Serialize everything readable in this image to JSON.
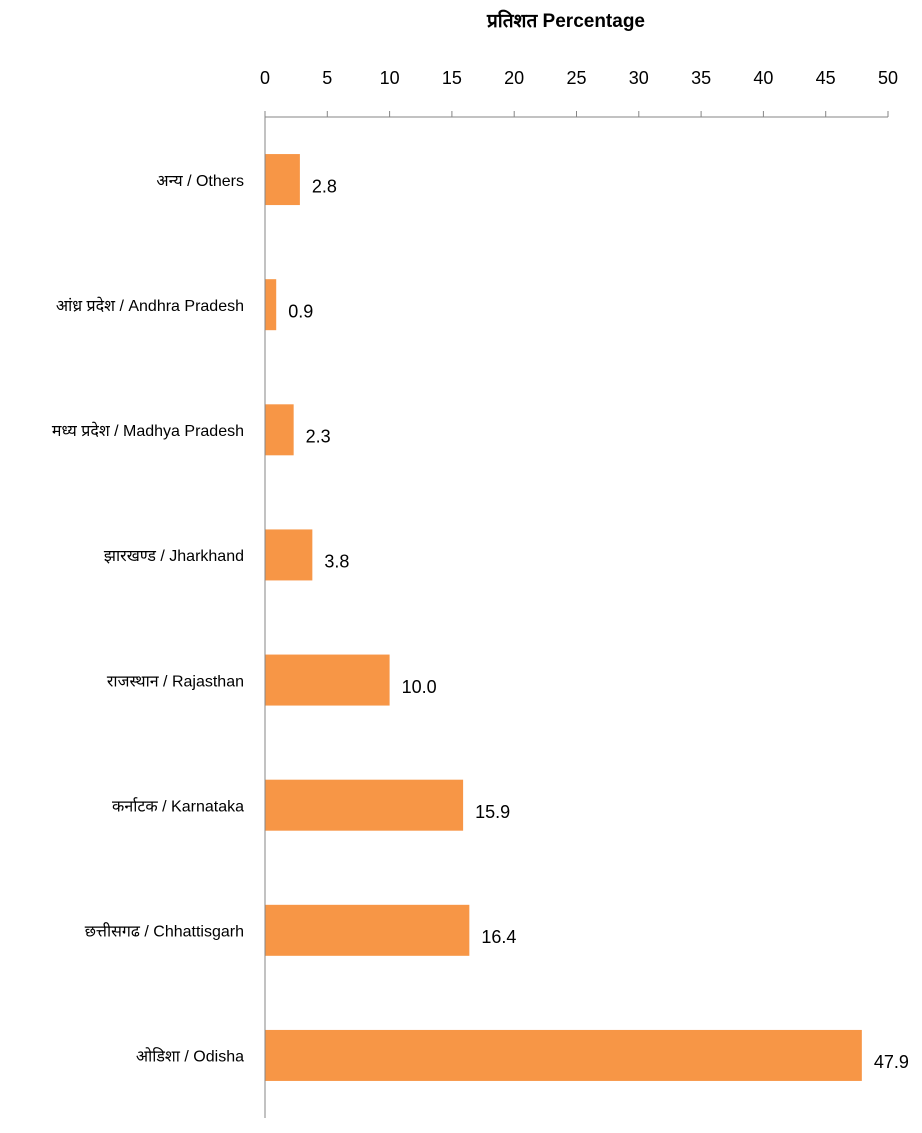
{
  "chart_data": {
    "type": "bar",
    "orientation": "horizontal",
    "title": "",
    "xlabel": "प्रतिशत Percentage",
    "ylabel": "",
    "xlim": [
      0,
      50
    ],
    "x_ticks": [
      0,
      5,
      10,
      15,
      20,
      25,
      30,
      35,
      40,
      45,
      50
    ],
    "x_axis_position": "top",
    "grid": false,
    "legend": "none",
    "bar_color": "#F79646",
    "categories": [
      "अन्य / Others",
      "आंध्र प्रदेश / Andhra Pradesh",
      "मध्य प्रदेश  / Madhya Pradesh",
      "झारखण्ड / Jharkhand",
      "राजस्थान / Rajasthan",
      "कर्नाटक / Karnataka",
      "छत्तीसगढ / Chhattisgarh",
      "ओडिशा / Odisha"
    ],
    "values": [
      2.8,
      0.9,
      2.3,
      3.8,
      10.0,
      15.9,
      16.4,
      47.9
    ],
    "data_labels": [
      "2.8",
      "0.9",
      "2.3",
      "3.8",
      "10.0",
      "15.9",
      "16.4",
      "47.9"
    ]
  }
}
